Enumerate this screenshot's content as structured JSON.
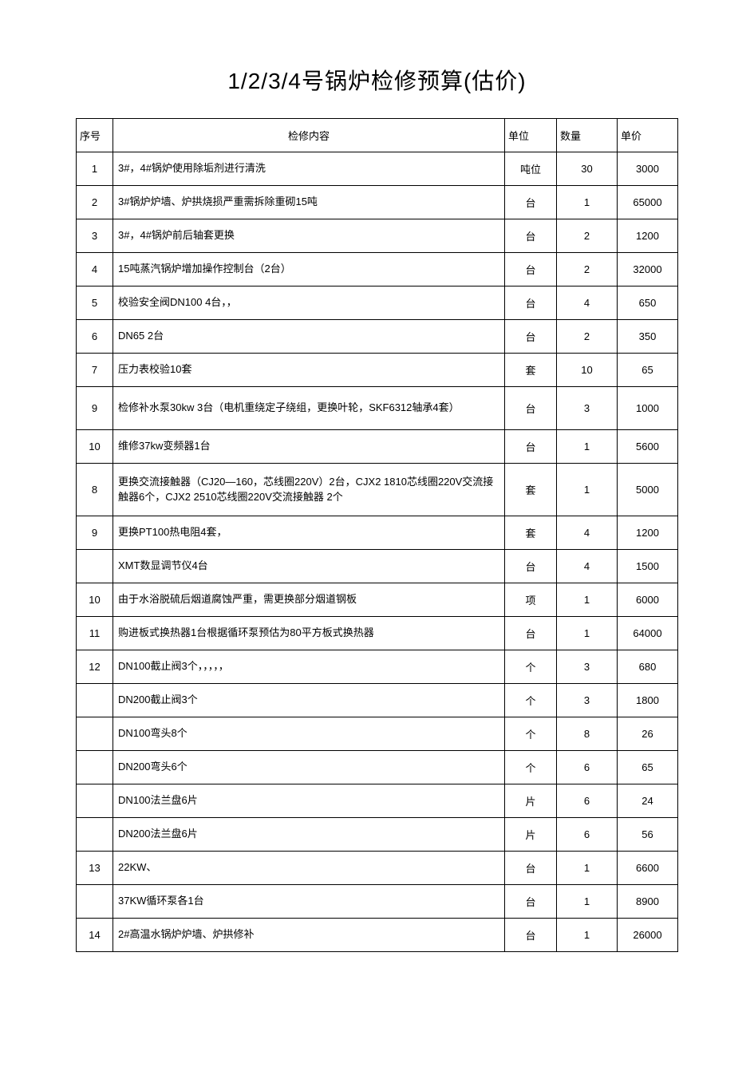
{
  "title": "1/2/3/4号锅炉检修预算(估价)",
  "columns": {
    "seq": "序号",
    "desc": "检修内容",
    "unit": "单位",
    "qty": "数量",
    "price": "单价"
  },
  "rows": [
    {
      "seq": "1",
      "desc": "3#，4#锅炉使用除垢剂进行清洗",
      "unit": "吨位",
      "qty": "30",
      "price": "3000"
    },
    {
      "seq": "2",
      "desc": "3#锅炉炉墙、炉拱烧损严重需拆除重砌15吨",
      "unit": "台",
      "qty": "1",
      "price": "65000"
    },
    {
      "seq": "3",
      "desc": "3#，4#锅炉前后轴套更换",
      "unit": "台",
      "qty": "2",
      "price": "1200"
    },
    {
      "seq": "4",
      "desc": "15吨蒸汽锅炉增加操作控制台（2台）",
      "unit": "台",
      "qty": "2",
      "price": "32000"
    },
    {
      "seq": "5",
      "desc": "校验安全阀DN100   4台，，",
      "unit": "台",
      "qty": "4",
      "price": "650"
    },
    {
      "seq": "6",
      "desc": "DN65   2台",
      "unit": "台",
      "qty": "2",
      "price": "350"
    },
    {
      "seq": "7",
      "desc": "压力表校验10套",
      "unit": "套",
      "qty": "10",
      "price": "65"
    },
    {
      "seq": "9",
      "desc": "检修补水泵30kw   3台（电机重绕定子绕组，更换叶轮，SKF6312轴承4套）",
      "unit": "台",
      "qty": "3",
      "price": "1000",
      "rowh": "tall"
    },
    {
      "seq": "10",
      "desc": "维修37kw变频器1台",
      "unit": "台",
      "qty": "1",
      "price": "5600"
    },
    {
      "seq": "8",
      "desc": "更换交流接触器（CJ20—160，芯线圈220V）2台，CJX2   1810芯线圈220V交流接触器6个，CJX2   2510芯线圈220V交流接触器  2个",
      "unit": "套",
      "qty": "1",
      "price": "5000",
      "rowh": "tall3"
    },
    {
      "seq": "9",
      "desc": "更换PT100热电阻4套，",
      "unit": "套",
      "qty": "4",
      "price": "1200"
    },
    {
      "seq": "",
      "desc": "XMT数显调节仪4台",
      "unit": "台",
      "qty": "4",
      "price": "1500"
    },
    {
      "seq": "10",
      "desc": "由于水浴脱硫后烟道腐蚀严重，需更换部分烟道钢板",
      "unit": "项",
      "qty": "1",
      "price": "6000"
    },
    {
      "seq": "11",
      "desc": "购进板式换热器1台根据循环泵预估为80平方板式换热器",
      "unit": "台",
      "qty": "1",
      "price": "64000"
    },
    {
      "seq": "12",
      "desc": "DN100截止阀3个，，，，，",
      "unit": "个",
      "qty": "3",
      "price": "680"
    },
    {
      "seq": "",
      "desc": "DN200截止阀3个",
      "unit": "个",
      "qty": "3",
      "price": "1800"
    },
    {
      "seq": "",
      "desc": "DN100弯头8个",
      "unit": "个",
      "qty": "8",
      "price": "26"
    },
    {
      "seq": "",
      "desc": "DN200弯头6个",
      "unit": "个",
      "qty": "6",
      "price": "65"
    },
    {
      "seq": "",
      "desc": "DN100法兰盘6片",
      "unit": "片",
      "qty": "6",
      "price": "24"
    },
    {
      "seq": "",
      "desc": "DN200法兰盘6片",
      "unit": "片",
      "qty": "6",
      "price": "56"
    },
    {
      "seq": "13",
      "desc": "22KW、",
      "unit": "台",
      "qty": "1",
      "price": "6600"
    },
    {
      "seq": "",
      "desc": "37KW循环泵各1台",
      "unit": "台",
      "qty": "1",
      "price": "8900"
    },
    {
      "seq": "14",
      "desc": "2#高温水锅炉炉墙、炉拱修补",
      "unit": "台",
      "qty": "1",
      "price": "26000"
    }
  ]
}
